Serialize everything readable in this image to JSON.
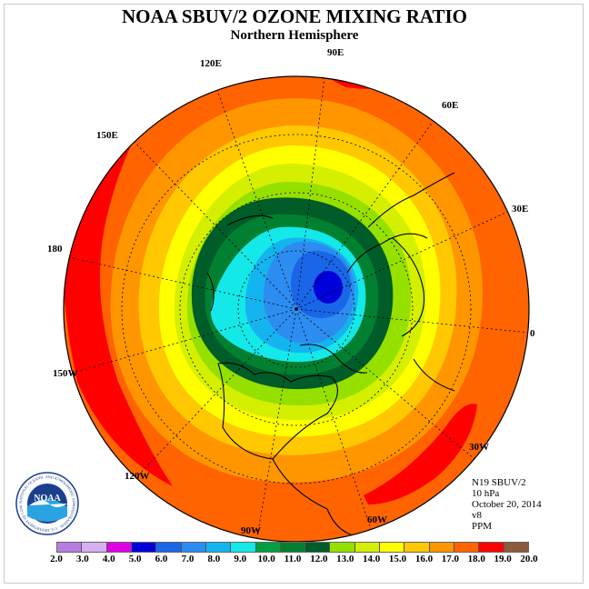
{
  "title": "NOAA SBUV/2 OZONE MIXING RATIO",
  "subtitle": "Northern Hemisphere",
  "longitude_labels": {
    "e90": "90E",
    "e60": "60E",
    "e30": "30E",
    "zero": "0",
    "w30": "30W",
    "w60": "60W",
    "w90": "90W",
    "w120": "120W",
    "w150": "150W",
    "d180": "180",
    "e150": "150E",
    "e120": "120E"
  },
  "info": {
    "instrument": "N19 SBUV/2",
    "level": "10 hPa",
    "date": "October 20, 2014",
    "version": "v8",
    "units": "PPM"
  },
  "logo": {
    "text": "NOAA",
    "ring_text": "NATIONAL OCEANIC AND ATMOSPHERIC ADMINISTRATION · U.S. DEPARTMENT OF COMMERCE"
  },
  "colorbar": {
    "ticks": [
      "2.0",
      "3.0",
      "4.0",
      "5.0",
      "6.0",
      "7.0",
      "8.0",
      "9.0",
      "10.0",
      "11.0",
      "12.0",
      "13.0",
      "14.0",
      "15.0",
      "16.0",
      "17.0",
      "18.0",
      "19.0",
      "20.0"
    ],
    "colors": [
      "#b77ee0",
      "#d6b0f0",
      "#e000e8",
      "#0000d8",
      "#1a66e8",
      "#2d8cf0",
      "#14b4f0",
      "#14e8e8",
      "#00a040",
      "#008030",
      "#005c28",
      "#96e000",
      "#d4f000",
      "#ffff00",
      "#ffc800",
      "#ff9600",
      "#ff6400",
      "#ff0000",
      "#8c5a3c"
    ]
  },
  "field_colors": {
    "red": "#ff0000",
    "orange_red": "#ff6400",
    "orange": "#ff9600",
    "amber": "#ffc800",
    "yellow": "#ffff00",
    "yellow_green": "#d4f000",
    "lime": "#96e000",
    "dark_green": "#005c28",
    "green": "#008030",
    "cyan": "#14e8e8",
    "sky": "#14b4f0",
    "blue": "#2d8cf0",
    "royal": "#1a66e8",
    "navy": "#0000d8"
  }
}
